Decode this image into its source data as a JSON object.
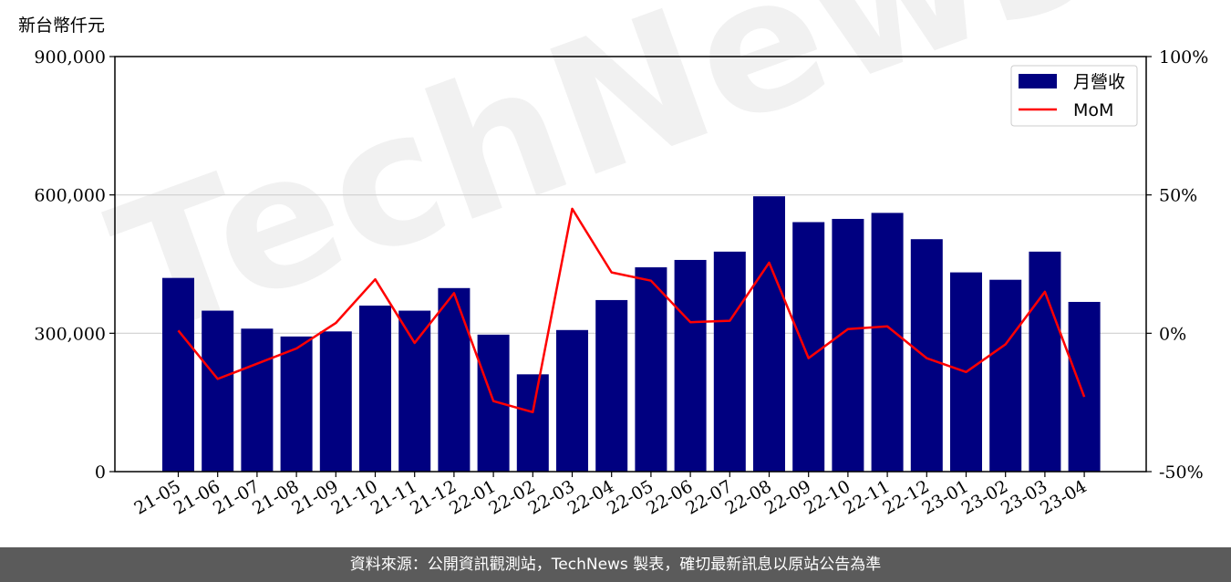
{
  "unit_label": "新台幣仟元",
  "watermark": "TechNews",
  "footer_text": "資料來源：公開資訊觀測站，TechNews 製表，確切最新訊息以原站公告為準",
  "colors": {
    "bar": "#000080",
    "line": "#ff0000",
    "grid": "#d0d0d0",
    "footer_bg": "#5b5b5b",
    "watermark": "#e6e6e6"
  },
  "chart_data": {
    "type": "bar",
    "categories": [
      "21-05",
      "21-06",
      "21-07",
      "21-08",
      "21-09",
      "21-10",
      "21-11",
      "21-12",
      "22-01",
      "22-02",
      "22-03",
      "22-04",
      "22-05",
      "22-06",
      "22-07",
      "22-08",
      "22-09",
      "22-10",
      "22-11",
      "22-12",
      "23-01",
      "23-02",
      "23-03",
      "23-04"
    ],
    "series": [
      {
        "name": "月營收",
        "type": "bar",
        "axis": "left",
        "values": [
          420000,
          349000,
          310000,
          293000,
          304000,
          360000,
          349000,
          398000,
          297000,
          211000,
          307000,
          372000,
          443000,
          459000,
          477000,
          597000,
          541000,
          548000,
          561000,
          504000,
          432000,
          416000,
          477000,
          368000
        ]
      },
      {
        "name": "MoM",
        "type": "line",
        "axis": "right",
        "values": [
          1,
          -16.5,
          -11,
          -5.5,
          3.7,
          19.5,
          -3.5,
          14.5,
          -24.5,
          -28.5,
          45,
          22,
          19,
          4,
          4.5,
          25.5,
          -9,
          1.5,
          2.5,
          -9,
          -14,
          -4,
          15,
          -23
        ]
      }
    ],
    "y_left": {
      "lim": [
        0,
        900000
      ],
      "ticks": [
        0,
        300000,
        600000,
        900000
      ],
      "tick_labels": [
        "0",
        "300,000",
        "600,000",
        "900,000"
      ]
    },
    "y_right": {
      "lim": [
        -50,
        100
      ],
      "ticks": [
        -50,
        0,
        50,
        100
      ],
      "tick_labels": [
        "-50%",
        "0%",
        "50%",
        "100%"
      ]
    },
    "grid": "horizontal",
    "legend_position": "top-right",
    "title": "",
    "xlabel": "",
    "ylabel": ""
  }
}
